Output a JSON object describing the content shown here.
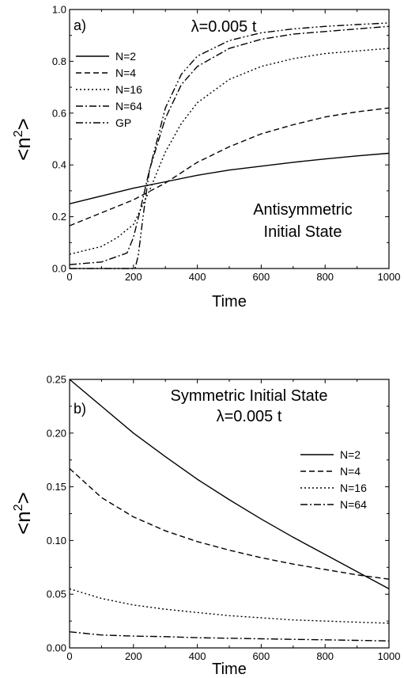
{
  "chart_data": [
    {
      "type": "line",
      "panel_label": "a)",
      "annotation_lambda": "λ=0.005 t",
      "annotation_state": [
        "Antisymmetric",
        "Initial State"
      ],
      "xlabel": "Time",
      "ylabel_main": "<n",
      "ylabel_sup": "2",
      "ylabel_end": ">",
      "xlim": [
        0,
        1000
      ],
      "ylim": [
        0,
        1.0
      ],
      "xticks": [
        "0",
        "200",
        "400",
        "600",
        "800",
        "1000"
      ],
      "yticks": [
        "0.0",
        "0.2",
        "0.4",
        "0.6",
        "0.8",
        "1.0"
      ],
      "legend_position": "top-left",
      "series": [
        {
          "name": "N=2",
          "style": "solid",
          "x": [
            0,
            100,
            200,
            300,
            400,
            500,
            600,
            700,
            800,
            900,
            1000
          ],
          "y": [
            0.25,
            0.28,
            0.31,
            0.335,
            0.36,
            0.38,
            0.395,
            0.41,
            0.423,
            0.435,
            0.445
          ]
        },
        {
          "name": "N=4",
          "style": "dashed",
          "x": [
            0,
            100,
            200,
            300,
            400,
            500,
            600,
            700,
            800,
            900,
            1000
          ],
          "y": [
            0.165,
            0.215,
            0.265,
            0.33,
            0.41,
            0.47,
            0.52,
            0.555,
            0.585,
            0.605,
            0.62
          ]
        },
        {
          "name": "N=16",
          "style": "dotted",
          "x": [
            0,
            100,
            150,
            200,
            250,
            300,
            350,
            400,
            500,
            600,
            700,
            800,
            900,
            1000
          ],
          "y": [
            0.055,
            0.085,
            0.12,
            0.17,
            0.3,
            0.45,
            0.56,
            0.64,
            0.73,
            0.78,
            0.81,
            0.83,
            0.84,
            0.85
          ]
        },
        {
          "name": "N=64",
          "style": "dashdot",
          "x": [
            0,
            100,
            180,
            200,
            220,
            250,
            300,
            350,
            400,
            500,
            600,
            700,
            800,
            900,
            1000
          ],
          "y": [
            0.015,
            0.025,
            0.06,
            0.12,
            0.22,
            0.38,
            0.58,
            0.71,
            0.78,
            0.85,
            0.885,
            0.905,
            0.915,
            0.925,
            0.935
          ]
        },
        {
          "name": "GP",
          "style": "dashdotdot",
          "x": [
            0,
            205,
            215,
            230,
            250,
            300,
            350,
            400,
            500,
            600,
            700,
            800,
            900,
            1000
          ],
          "y": [
            0.0,
            0.0,
            0.05,
            0.2,
            0.38,
            0.62,
            0.75,
            0.82,
            0.88,
            0.91,
            0.925,
            0.935,
            0.942,
            0.948
          ]
        }
      ]
    },
    {
      "type": "line",
      "panel_label": "b)",
      "annotation_state": [
        "Symmetric Initial State"
      ],
      "annotation_lambda": "λ=0.005 t",
      "xlabel": "Time",
      "ylabel_main": "<n",
      "ylabel_sup": "2",
      "ylabel_end": ">",
      "xlim": [
        0,
        1000
      ],
      "ylim": [
        0,
        0.25
      ],
      "xticks": [
        "0",
        "200",
        "400",
        "600",
        "800",
        "1000"
      ],
      "yticks": [
        "0.00",
        "0.05",
        "0.10",
        "0.15",
        "0.20",
        "0.25"
      ],
      "legend_position": "center-right",
      "series": [
        {
          "name": "N=2",
          "style": "solid",
          "x": [
            0,
            100,
            200,
            300,
            400,
            500,
            600,
            700,
            800,
            900,
            1000
          ],
          "y": [
            0.25,
            0.225,
            0.2,
            0.178,
            0.157,
            0.138,
            0.12,
            0.103,
            0.087,
            0.071,
            0.055
          ]
        },
        {
          "name": "N=4",
          "style": "dashed",
          "x": [
            0,
            100,
            200,
            300,
            400,
            500,
            600,
            700,
            800,
            900,
            1000
          ],
          "y": [
            0.167,
            0.14,
            0.122,
            0.109,
            0.099,
            0.091,
            0.084,
            0.078,
            0.073,
            0.068,
            0.064
          ]
        },
        {
          "name": "N=16",
          "style": "dotted",
          "x": [
            0,
            100,
            200,
            300,
            400,
            500,
            600,
            700,
            800,
            900,
            1000
          ],
          "y": [
            0.055,
            0.046,
            0.04,
            0.036,
            0.033,
            0.03,
            0.028,
            0.026,
            0.025,
            0.024,
            0.023
          ]
        },
        {
          "name": "N=64",
          "style": "dashdot",
          "x": [
            0,
            100,
            200,
            300,
            400,
            500,
            600,
            700,
            800,
            900,
            1000
          ],
          "y": [
            0.015,
            0.012,
            0.011,
            0.0105,
            0.0095,
            0.009,
            0.0085,
            0.008,
            0.0075,
            0.007,
            0.0065
          ]
        }
      ]
    }
  ]
}
